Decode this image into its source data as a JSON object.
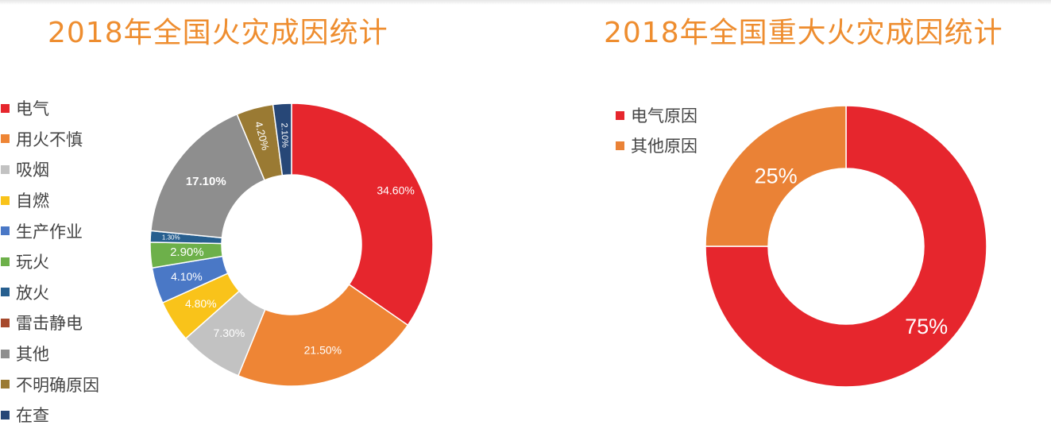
{
  "colors": {
    "title": "#ee8d2f",
    "legend_text": "#444444"
  },
  "chart_data": [
    {
      "type": "pie",
      "donut": true,
      "title": "2018年全国火灾成因统计",
      "legend_position": "left",
      "slices": [
        {
          "name": "电气",
          "value": 34.6,
          "label": "34.60%",
          "color": "#e6262d"
        },
        {
          "name": "用火不慎",
          "value": 21.5,
          "label": "21.50%",
          "color": "#ee8535"
        },
        {
          "name": "吸烟",
          "value": 7.3,
          "label": "7.30%",
          "color": "#c2c2c2"
        },
        {
          "name": "自燃",
          "value": 4.8,
          "label": "4.80%",
          "color": "#f9c31a"
        },
        {
          "name": "生产作业",
          "value": 4.1,
          "label": "4.10%",
          "color": "#4a78c6"
        },
        {
          "name": "玩火",
          "value": 2.9,
          "label": "2.90%",
          "color": "#6db04a"
        },
        {
          "name": "放火",
          "value": 1.3,
          "label": "1.30%",
          "color": "#275f8f"
        },
        {
          "name": "雷击静电",
          "value": 0,
          "label": "",
          "color": "#a6492c"
        },
        {
          "name": "其他",
          "value": 17.1,
          "label": "17.10%",
          "color": "#8e8e8e"
        },
        {
          "name": "不明确原因",
          "value": 4.2,
          "label": "4.20%",
          "color": "#9a7a33"
        },
        {
          "name": "在查",
          "value": 2.1,
          "label": "2.10%",
          "color": "#274777"
        }
      ]
    },
    {
      "type": "pie",
      "donut": true,
      "title": "2018年全国重大火灾成因统计",
      "legend_position": "top-left",
      "slices": [
        {
          "name": "电气原因",
          "value": 75,
          "label": "75%",
          "color": "#e6262d"
        },
        {
          "name": "其他原因",
          "value": 25,
          "label": "25%",
          "color": "#ea8236"
        }
      ]
    }
  ]
}
